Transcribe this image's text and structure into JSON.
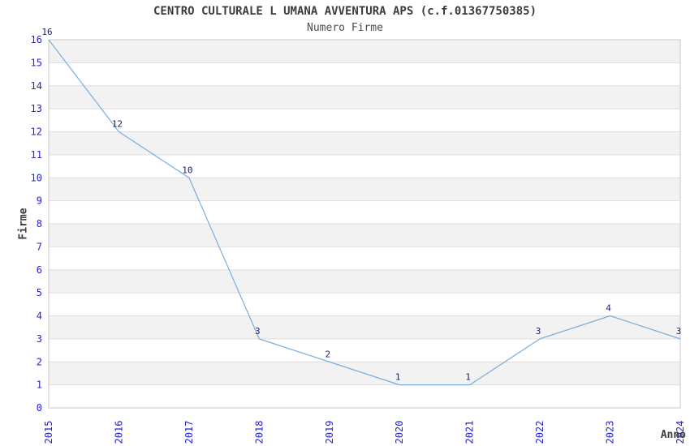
{
  "page": {
    "background": "#ffffff"
  },
  "chart_data": {
    "type": "line",
    "title": "CENTRO CULTURALE L UMANA AVVENTURA APS (c.f.01367750385)",
    "subtitle": "Numero Firme",
    "xlabel": "Anno",
    "ylabel": "Firme",
    "categories": [
      "2015",
      "2016",
      "2017",
      "2018",
      "2019",
      "2020",
      "2021",
      "2022",
      "2023",
      "2024"
    ],
    "values": [
      16,
      12,
      10,
      3,
      2,
      1,
      1,
      3,
      4,
      3
    ],
    "data_labels": [
      "16",
      "12",
      "10",
      "3",
      "2",
      "1",
      "1",
      "3",
      "4",
      "3"
    ],
    "ylim": [
      0,
      16
    ],
    "y_ticks": [
      0,
      1,
      2,
      3,
      4,
      5,
      6,
      7,
      8,
      9,
      10,
      11,
      12,
      13,
      14,
      15,
      16
    ],
    "grid": "horizontal-stripes",
    "legend_position": "none",
    "colors": {
      "line": "#79aede",
      "tick_labels": "#2525cc",
      "data_labels": "#202070",
      "stripe": "#f2f2f2",
      "grid_line": "#dedede",
      "plot_border": "#c9c9c9",
      "title": "#3c3c3c",
      "subtitle": "#4d4d4d",
      "axis_labels": "#3c3c3c"
    }
  }
}
